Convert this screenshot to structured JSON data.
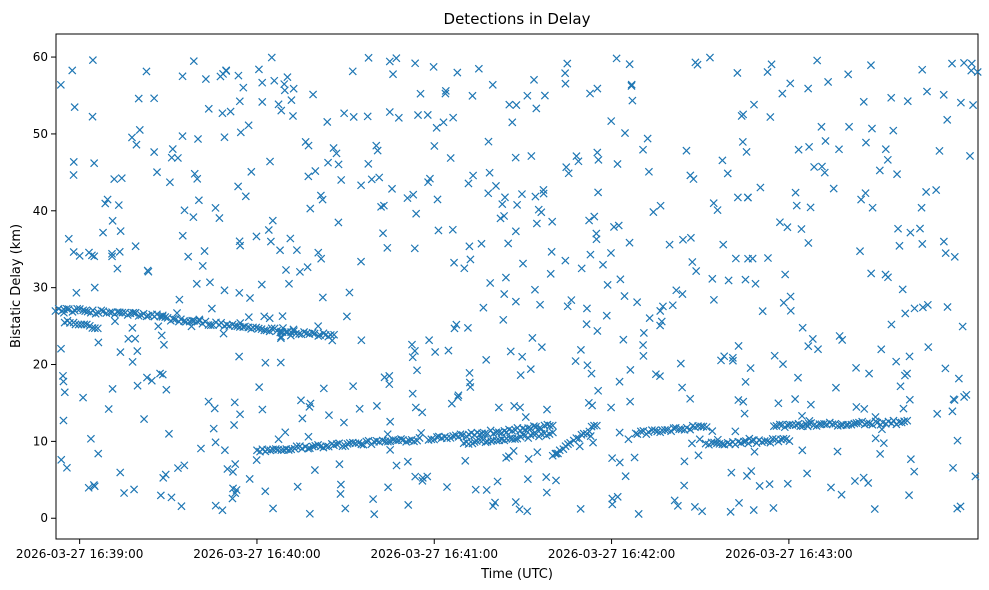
{
  "chart_data": {
    "type": "scatter",
    "title": "Detections in Delay",
    "xlabel": "Time (UTC)",
    "ylabel": "Bistatic Delay (km)",
    "x_ticks": [
      "2026-03-27 16:39:00",
      "2026-03-27 16:40:00",
      "2026-03-27 16:41:00",
      "2026-03-27 16:42:00",
      "2026-03-27 16:43:00"
    ],
    "x_range": [
      "2026-03-27 16:38:52",
      "2026-03-27 16:44:04"
    ],
    "y_ticks": [
      0,
      10,
      20,
      30,
      40,
      50,
      60
    ],
    "ylim": [
      -2.7,
      63.0
    ],
    "marker": "x",
    "color": "#1f77b4",
    "grid": false,
    "series": [
      {
        "description_tracks": [
          {
            "x_start": "2026-03-27 16:38:52",
            "x_end": "2026-03-27 16:39:28",
            "y_start": 27.2,
            "y_end": 26.3
          },
          {
            "x_start": "2026-03-27 16:39:28",
            "x_end": "2026-03-27 16:40:26",
            "y_start": 26.0,
            "y_end": 23.7
          },
          {
            "x_start": "2026-03-27 16:38:55",
            "x_end": "2026-03-27 16:39:06",
            "y_start": 25.5,
            "y_end": 24.9
          },
          {
            "x_start": "2026-03-27 16:40:00",
            "x_end": "2026-03-27 16:40:55",
            "y_start": 8.8,
            "y_end": 10.3
          },
          {
            "x_start": "2026-03-27 16:40:58",
            "x_end": "2026-03-27 16:41:40",
            "y_start": 10.4,
            "y_end": 12.0
          },
          {
            "x_start": "2026-03-27 16:41:10",
            "x_end": "2026-03-27 16:41:40",
            "y_start": 9.8,
            "y_end": 11.0
          },
          {
            "x_start": "2026-03-27 16:41:40",
            "x_end": "2026-03-27 16:41:55",
            "y_start": 8.0,
            "y_end": 12.2
          },
          {
            "x_start": "2026-03-27 16:42:08",
            "x_end": "2026-03-27 16:42:32",
            "y_start": 11.0,
            "y_end": 12.0
          },
          {
            "x_start": "2026-03-27 16:42:32",
            "x_end": "2026-03-27 16:43:00",
            "y_start": 9.6,
            "y_end": 10.2
          },
          {
            "x_start": "2026-03-27 16:42:55",
            "x_end": "2026-03-27 16:43:40",
            "y_start": 12.0,
            "y_end": 12.5
          }
        ],
        "noise_points_approx": 700,
        "noise_y_range": [
          0.5,
          60
        ]
      }
    ]
  }
}
